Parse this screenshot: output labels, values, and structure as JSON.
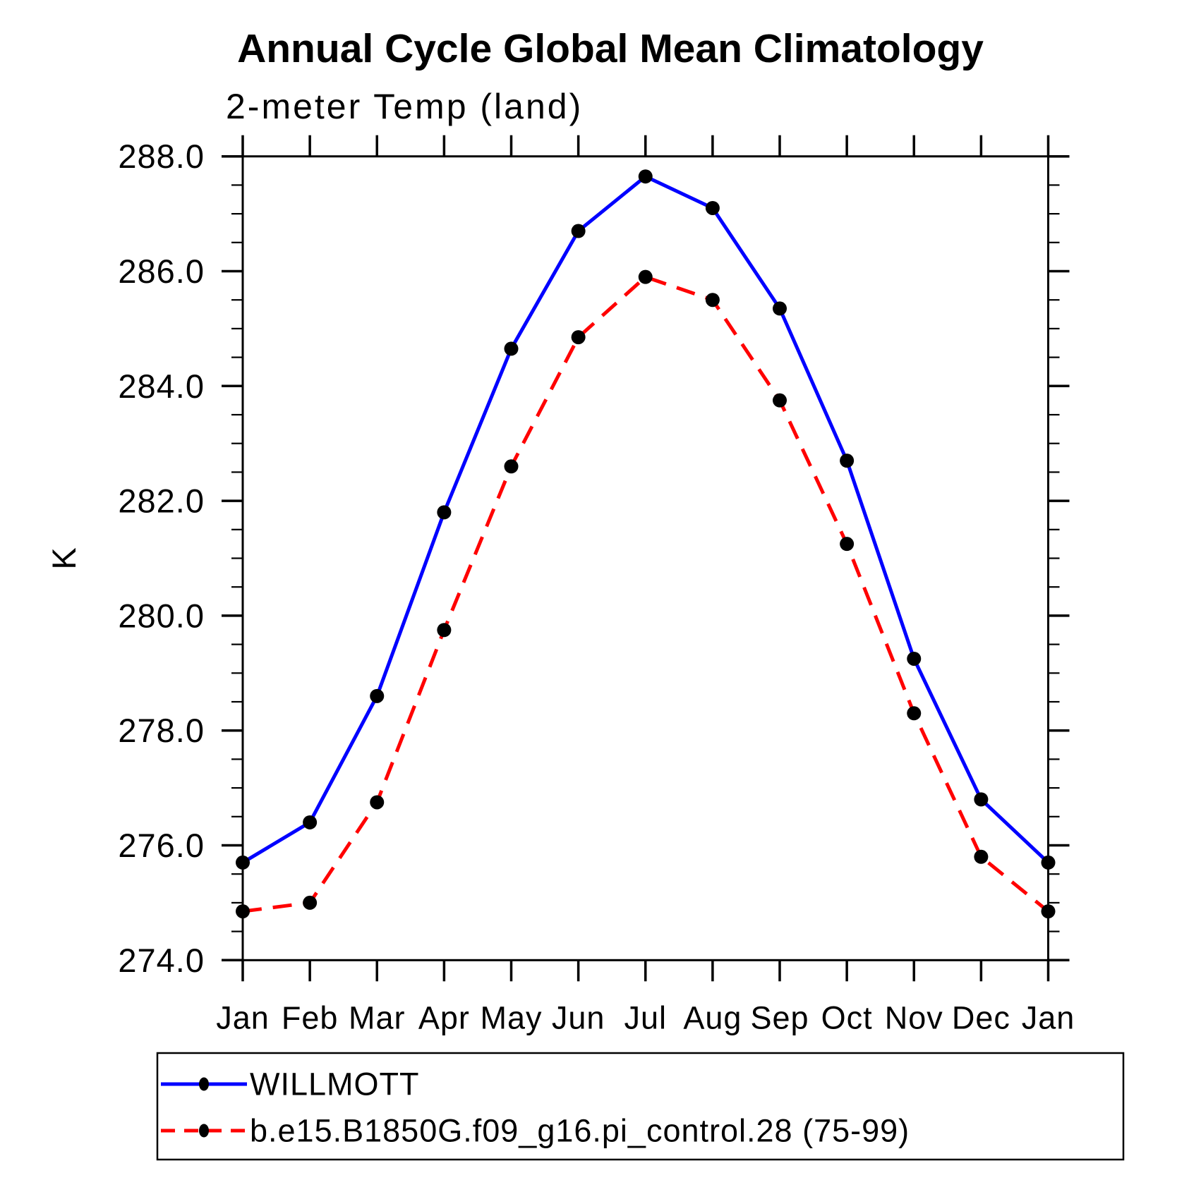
{
  "page": {
    "background": "#ffffff",
    "text_color": "#000000"
  },
  "header": {
    "title": "Annual Cycle Global Mean Climatology",
    "subtitle": "2-meter Temp (land)"
  },
  "chart_data": {
    "type": "line",
    "title": "Annual Cycle Global Mean Climatology",
    "subtitle": "2-meter Temp (land)",
    "xlabel": "",
    "ylabel": "K",
    "categories": [
      "Jan",
      "Feb",
      "Mar",
      "Apr",
      "May",
      "Jun",
      "Jul",
      "Aug",
      "Sep",
      "Oct",
      "Nov",
      "Dec",
      "Jan"
    ],
    "ylim": [
      274.0,
      288.0
    ],
    "y_major_step": 2.0,
    "y_minor_step": 0.5,
    "y_tick_labels": [
      "274.0",
      "276.0",
      "278.0",
      "280.0",
      "282.0",
      "284.0",
      "286.0",
      "288.0"
    ],
    "grid": false,
    "legend_position": "bottom",
    "series": [
      {
        "name": "WILLMOTT",
        "color": "#0000ff",
        "line_style": "solid",
        "marker": "filled-circle",
        "marker_color": "#000000",
        "values": [
          275.7,
          276.4,
          278.6,
          281.8,
          284.65,
          286.7,
          287.65,
          287.1,
          285.35,
          282.7,
          279.25,
          276.8,
          275.7
        ]
      },
      {
        "name": "b.e15.B1850G.f09_g16.pi_control.28 (75-99)",
        "color": "#ff0000",
        "line_style": "dashed",
        "marker": "filled-circle",
        "marker_color": "#000000",
        "values": [
          274.85,
          275.0,
          276.75,
          279.75,
          282.6,
          284.85,
          285.9,
          285.5,
          283.75,
          281.25,
          278.3,
          275.8,
          274.85
        ]
      }
    ]
  }
}
